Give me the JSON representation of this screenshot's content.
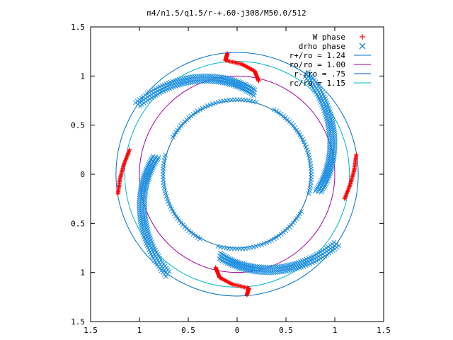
{
  "chart_data": {
    "type": "scatter",
    "title": "m4/n1.5/q1.5/r-+.60-j308/M50.0/512",
    "xlabel": "",
    "ylabel": "",
    "xlim": [
      -1.5,
      1.5
    ],
    "ylim": [
      -1.5,
      1.5
    ],
    "x_tick_values": [
      -1.5,
      -1.0,
      -0.5,
      0.0,
      0.5,
      1.0,
      1.5
    ],
    "x_tick_labels": [
      "1.5",
      "1",
      "0.5",
      "0",
      "0.5",
      "1",
      "1.5"
    ],
    "y_tick_values": [
      1.5,
      1.0,
      0.5,
      0.0,
      -0.5,
      -1.0,
      -1.5
    ],
    "y_tick_labels": [
      "1.5",
      "1",
      "0.5",
      "0",
      "0.5",
      "1",
      "1.5"
    ],
    "grid": false,
    "legend_position": "top-right",
    "legend": [
      {
        "label": "W phase",
        "marker": "+",
        "color": "#ff0000"
      },
      {
        "label": "drho phase",
        "marker": "x",
        "color": "#0070c8"
      },
      {
        "label": "r+/ro = 1.24",
        "marker": "line",
        "color": "#0070c8"
      },
      {
        "label": "ro/ro = 1.00",
        "marker": "line",
        "color": "#a000a0"
      },
      {
        "label": "r-/ro = .75",
        "marker": "line",
        "color": "#0060b0"
      },
      {
        "label": "rc/ro = 1.15",
        "marker": "line",
        "color": "#00b8c8"
      }
    ],
    "circles": [
      {
        "name": "r+/ro = 1.24",
        "r": 1.24,
        "color": "#0070c8"
      },
      {
        "name": "ro/ro = 1.00",
        "r": 1.0,
        "color": "#a000a0"
      },
      {
        "name": "r-/ro = .75",
        "r": 0.75,
        "color": "#0060b0"
      },
      {
        "name": "rc/ro = 1.15",
        "r": 1.15,
        "color": "#00b8c8"
      }
    ],
    "series": [
      {
        "name": "drho phase",
        "color": "#1f8fe0",
        "arms": [
          {
            "angle_start": 145,
            "angle_end": 78,
            "r_start": 1.24,
            "r_end": 0.85
          },
          {
            "angle_start": 235,
            "angle_end": 168,
            "r_start": 1.24,
            "r_end": 0.85
          },
          {
            "angle_start": 325,
            "angle_end": 258,
            "r_start": 1.24,
            "r_end": 0.85
          },
          {
            "angle_start": 55,
            "angle_end": -12,
            "r_start": 1.24,
            "r_end": 0.85
          }
        ],
        "inner_arcs": [
          {
            "angle_start": 75,
            "angle_end": 150,
            "r": 0.76
          },
          {
            "angle_start": 165,
            "angle_end": 240,
            "r": 0.76
          },
          {
            "angle_start": 255,
            "angle_end": 330,
            "r": 0.76
          },
          {
            "angle_start": -15,
            "angle_end": 60,
            "r": 0.76
          }
        ]
      },
      {
        "name": "W phase",
        "color": "#ff0000",
        "segments": [
          {
            "points": [
              [
                -0.1,
                1.23
              ],
              [
                -0.12,
                1.16
              ],
              [
                0.05,
                1.12
              ],
              [
                0.18,
                1.05
              ],
              [
                0.22,
                0.95
              ]
            ]
          },
          {
            "points": [
              [
                -1.1,
                0.25
              ],
              [
                -1.16,
                0.1
              ],
              [
                -1.2,
                -0.05
              ],
              [
                -1.22,
                -0.2
              ]
            ]
          },
          {
            "points": [
              [
                0.1,
                -1.23
              ],
              [
                0.12,
                -1.16
              ],
              [
                -0.05,
                -1.12
              ],
              [
                -0.18,
                -1.05
              ],
              [
                -0.22,
                -0.95
              ]
            ]
          },
          {
            "points": [
              [
                1.1,
                -0.25
              ],
              [
                1.16,
                -0.1
              ],
              [
                1.2,
                0.05
              ],
              [
                1.22,
                0.2
              ]
            ]
          }
        ]
      }
    ]
  }
}
